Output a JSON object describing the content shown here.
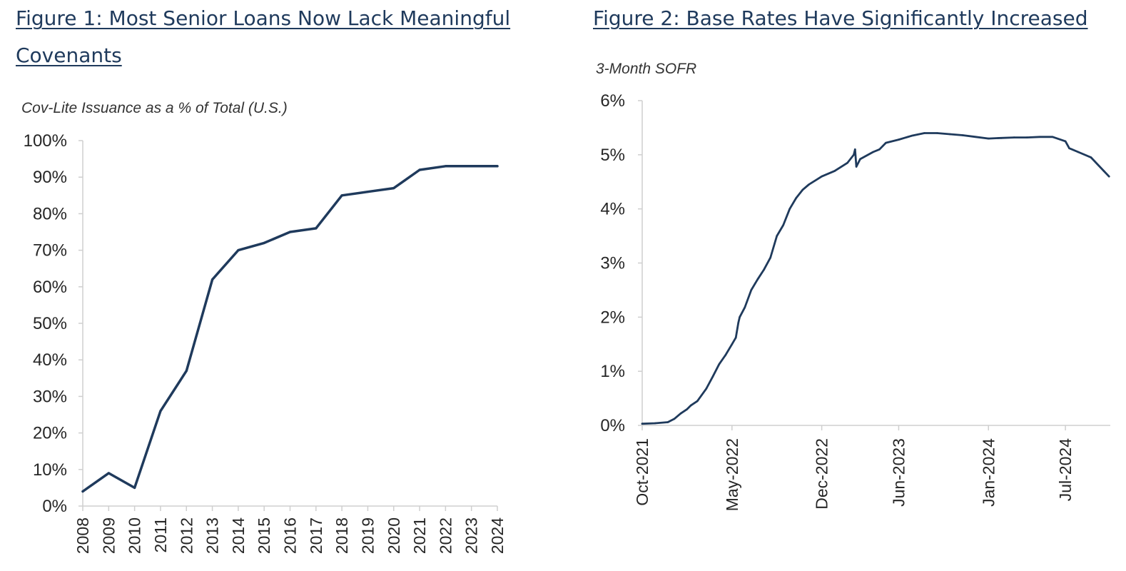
{
  "colors": {
    "title": "#1f3a5c",
    "series": "#1f3a5c"
  },
  "figure1": {
    "title": "Figure 1: Most Senior Loans Now Lack Meaningful Covenants"
  },
  "figure2": {
    "title": "Figure 2: Base Rates Have Significantly Increased"
  },
  "chart_data": [
    {
      "type": "line",
      "title": "Figure 1: Most Senior Loans Now Lack Meaningful Covenants",
      "subtitle": "Cov-Lite Issuance as a % of Total (U.S.)",
      "xlabel": "",
      "ylabel": "",
      "ylim": [
        0,
        100
      ],
      "y_ticks": [
        "0%",
        "10%",
        "20%",
        "30%",
        "40%",
        "50%",
        "60%",
        "70%",
        "80%",
        "90%",
        "100%"
      ],
      "categories": [
        "2008",
        "2009",
        "2010",
        "2011",
        "2012",
        "2013",
        "2014",
        "2015",
        "2016",
        "2017",
        "2018",
        "2019",
        "2020",
        "2021",
        "2022",
        "2023",
        "2024"
      ],
      "series": [
        {
          "name": "Cov-Lite Issuance %",
          "values": [
            4,
            9,
            5,
            26,
            37,
            62,
            70,
            72,
            75,
            76,
            85,
            86,
            87,
            92,
            93,
            93,
            93
          ]
        }
      ]
    },
    {
      "type": "line",
      "title": "Figure 2: Base Rates Have Significantly Increased",
      "subtitle": "3-Month SOFR",
      "xlabel": "",
      "ylabel": "",
      "xlim": [
        0,
        36.5
      ],
      "ylim": [
        0,
        6
      ],
      "y_ticks": [
        "0%",
        "1%",
        "2%",
        "3%",
        "4%",
        "5%",
        "6%"
      ],
      "x_tick_labels": [
        "Oct-2021",
        "May-2022",
        "Dec-2022",
        "Jun-2023",
        "Jan-2024",
        "Jul-2024"
      ],
      "x_tick_values": [
        0,
        7,
        14,
        20,
        27,
        33
      ],
      "x_unit": "months since Oct-2021",
      "series": [
        {
          "name": "3-Month SOFR",
          "x": [
            0,
            1,
            2,
            2.5,
            3,
            3.5,
            3.8,
            4.3,
            5,
            5.5,
            6,
            6.5,
            7,
            7.3,
            7.5,
            7.6,
            8,
            8.5,
            8.8,
            9,
            9.5,
            10,
            10.5,
            11,
            11.5,
            12,
            12.5,
            13,
            14,
            15,
            16,
            16.5,
            16.6,
            16.7,
            17,
            18,
            18.5,
            19,
            20,
            21,
            22,
            23,
            24,
            25,
            26,
            27,
            28,
            29,
            30,
            31,
            32,
            33,
            33.3,
            34,
            35,
            36,
            36.4
          ],
          "y": [
            0.03,
            0.04,
            0.06,
            0.12,
            0.22,
            0.3,
            0.37,
            0.45,
            0.68,
            0.9,
            1.13,
            1.3,
            1.5,
            1.62,
            1.9,
            2.0,
            2.18,
            2.5,
            2.62,
            2.7,
            2.88,
            3.1,
            3.5,
            3.7,
            4.0,
            4.2,
            4.35,
            4.45,
            4.6,
            4.7,
            4.85,
            5.0,
            5.1,
            4.78,
            4.92,
            5.05,
            5.1,
            5.22,
            5.28,
            5.35,
            5.4,
            5.4,
            5.38,
            5.36,
            5.33,
            5.3,
            5.31,
            5.32,
            5.32,
            5.33,
            5.33,
            5.25,
            5.12,
            5.05,
            4.95,
            4.7,
            4.6
          ]
        }
      ]
    }
  ]
}
